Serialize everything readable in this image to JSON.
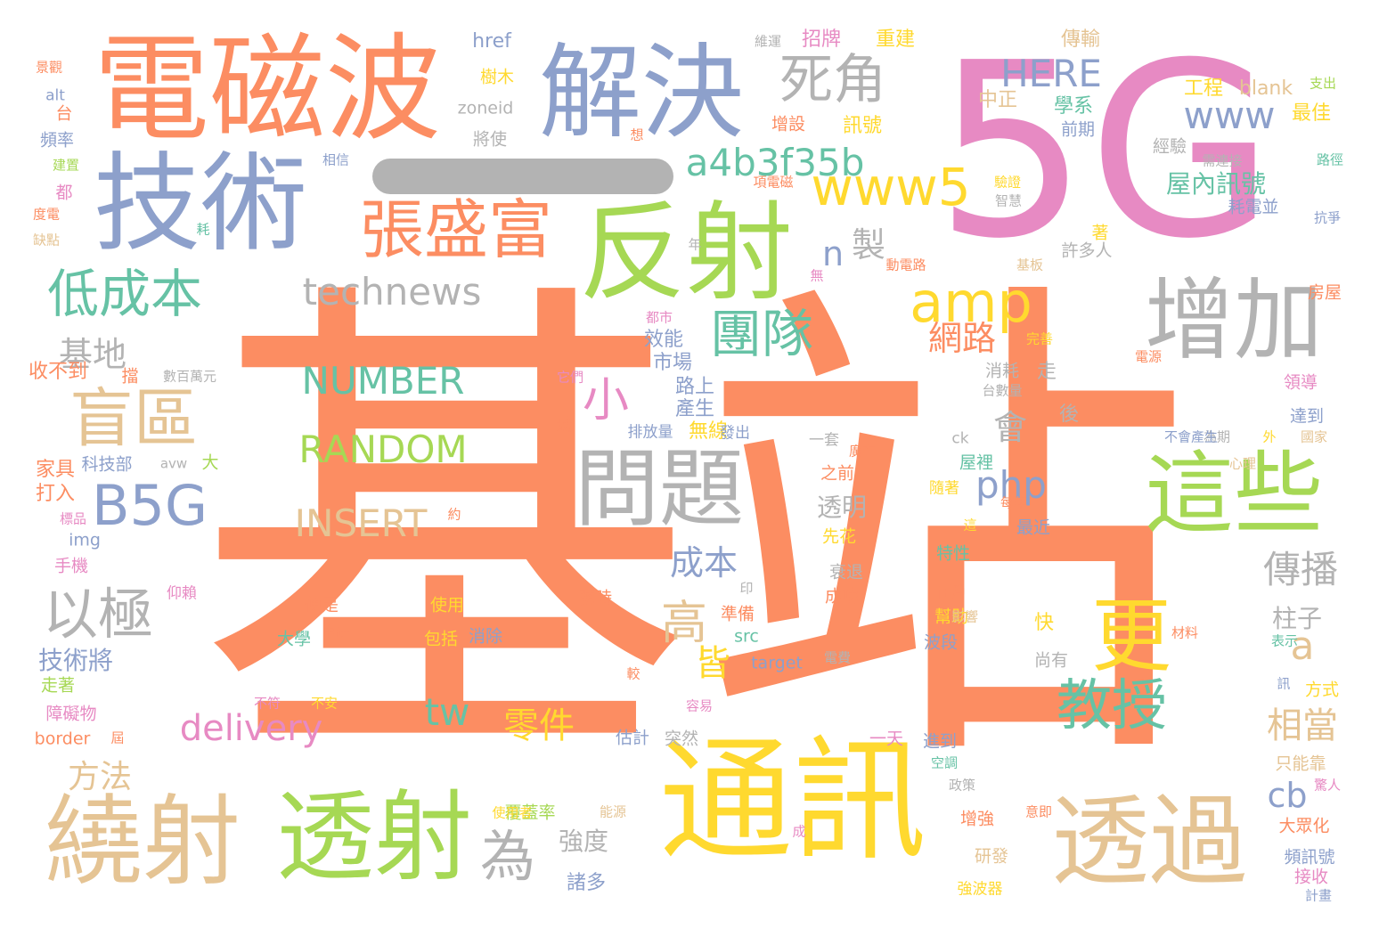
{
  "colors": {
    "orange": "#fc8d62",
    "blue": "#8da0cb",
    "pink": "#e78ac3",
    "green": "#a6d854",
    "yellow": "#ffd92f",
    "tan": "#e5c494",
    "gray": "#b3b3b3",
    "teal": "#66c2a5"
  },
  "words": [
    {
      "text": "基站",
      "color": "orange"
    },
    {
      "text": "5G",
      "color": "pink"
    },
    {
      "text": "通訊",
      "color": "yellow"
    },
    {
      "text": "電磁波",
      "color": "orange"
    },
    {
      "text": "解決",
      "color": "blue"
    },
    {
      "text": "技術",
      "color": "blue"
    },
    {
      "text": "反射",
      "color": "green"
    },
    {
      "text": "一",
      "color": "gray"
    },
    {
      "text": "透過",
      "color": "tan"
    },
    {
      "text": "繞射",
      "color": "tan"
    },
    {
      "text": "透射",
      "color": "green"
    },
    {
      "text": "增加",
      "color": "gray"
    },
    {
      "text": "這些",
      "color": "green"
    },
    {
      "text": "問題",
      "color": "gray"
    },
    {
      "text": "張盛富",
      "color": "orange"
    },
    {
      "text": "死角",
      "color": "gray"
    },
    {
      "text": "盲區",
      "color": "tan"
    },
    {
      "text": "低成本",
      "color": "teal"
    },
    {
      "text": "更",
      "color": "yellow"
    },
    {
      "text": "教授",
      "color": "teal"
    },
    {
      "text": "團隊",
      "color": "teal"
    },
    {
      "text": "amp",
      "color": "yellow"
    },
    {
      "text": "www5",
      "color": "yellow"
    },
    {
      "text": "以極",
      "color": "gray"
    },
    {
      "text": "B5G",
      "color": "blue"
    },
    {
      "text": "a4b3f35b",
      "color": "teal"
    },
    {
      "text": "technews",
      "color": "gray"
    },
    {
      "text": "HERE",
      "color": "blue"
    },
    {
      "text": "NUMBER",
      "color": "teal"
    },
    {
      "text": "RANDOM",
      "color": "green"
    },
    {
      "text": "INSERT",
      "color": "tan"
    },
    {
      "text": "為",
      "color": "gray"
    },
    {
      "text": "高",
      "color": "tan"
    },
    {
      "text": "www",
      "color": "blue"
    },
    {
      "text": "傳播",
      "color": "gray"
    },
    {
      "text": "相當",
      "color": "tan"
    },
    {
      "text": "小",
      "color": "pink"
    },
    {
      "text": "網路",
      "color": "orange"
    },
    {
      "text": "php",
      "color": "blue"
    },
    {
      "text": "會",
      "color": "gray"
    },
    {
      "text": "成本",
      "color": "blue"
    },
    {
      "text": "零件",
      "color": "yellow"
    },
    {
      "text": "delivery",
      "color": "pink"
    },
    {
      "text": "基地",
      "color": "gray"
    },
    {
      "text": "方法",
      "color": "tan"
    },
    {
      "text": "tw",
      "color": "teal"
    },
    {
      "text": "皆",
      "color": "yellow"
    },
    {
      "text": "a",
      "color": "tan"
    },
    {
      "text": "cb",
      "color": "blue"
    },
    {
      "text": "n",
      "color": "blue"
    },
    {
      "text": "製",
      "color": "gray"
    },
    {
      "text": "技術將",
      "color": "blue"
    },
    {
      "text": "屋內訊號",
      "color": "teal"
    },
    {
      "text": "柱子",
      "color": "gray"
    },
    {
      "text": "透明",
      "color": "gray"
    },
    {
      "text": "強度",
      "color": "gray"
    },
    {
      "text": "諸多",
      "color": "blue"
    },
    {
      "text": "href",
      "color": "blue"
    },
    {
      "text": "樹木",
      "color": "yellow"
    },
    {
      "text": "zoneid",
      "color": "gray"
    },
    {
      "text": "將使",
      "color": "gray"
    },
    {
      "text": "招牌",
      "color": "pink"
    },
    {
      "text": "重建",
      "color": "yellow"
    },
    {
      "text": "傳輸",
      "color": "tan"
    },
    {
      "text": "中正",
      "color": "tan"
    },
    {
      "text": "學系",
      "color": "teal"
    },
    {
      "text": "工程",
      "color": "yellow"
    },
    {
      "text": "blank",
      "color": "tan"
    },
    {
      "text": "最佳",
      "color": "yellow"
    },
    {
      "text": "前期",
      "color": "blue"
    },
    {
      "text": "增設",
      "color": "orange"
    },
    {
      "text": "訊號",
      "color": "yellow"
    },
    {
      "text": "經驗",
      "color": "gray"
    },
    {
      "text": "耗電並",
      "color": "blue"
    },
    {
      "text": "路上",
      "color": "blue"
    },
    {
      "text": "產生",
      "color": "blue"
    },
    {
      "text": "無線",
      "color": "yellow"
    },
    {
      "text": "市場",
      "color": "blue"
    },
    {
      "text": "效能",
      "color": "blue"
    },
    {
      "text": "走",
      "color": "gray"
    },
    {
      "text": "後",
      "color": "gray"
    },
    {
      "text": "許多人",
      "color": "gray"
    },
    {
      "text": "消耗",
      "color": "gray"
    },
    {
      "text": "收不到",
      "color": "orange"
    },
    {
      "text": "家具",
      "color": "orange"
    },
    {
      "text": "打入",
      "color": "orange"
    },
    {
      "text": "img",
      "color": "blue"
    },
    {
      "text": "手機",
      "color": "pink"
    },
    {
      "text": "障礙物",
      "color": "pink"
    },
    {
      "text": "走著",
      "color": "green"
    },
    {
      "text": "border",
      "color": "orange"
    },
    {
      "text": "使用",
      "color": "yellow"
    },
    {
      "text": "便是",
      "color": "orange"
    },
    {
      "text": "大學",
      "color": "teal"
    },
    {
      "text": "消除",
      "color": "blue"
    },
    {
      "text": "包括",
      "color": "yellow"
    },
    {
      "text": "src",
      "color": "teal"
    },
    {
      "text": "target",
      "color": "blue"
    },
    {
      "text": "準備",
      "color": "orange"
    },
    {
      "text": "成功",
      "color": "orange"
    },
    {
      "text": "號時",
      "color": "orange"
    },
    {
      "text": "衰退",
      "color": "gray"
    },
    {
      "text": "特性",
      "color": "teal"
    },
    {
      "text": "幫助",
      "color": "yellow"
    },
    {
      "text": "波段",
      "color": "blue"
    },
    {
      "text": "尚有",
      "color": "gray"
    },
    {
      "text": "快",
      "color": "yellow"
    },
    {
      "text": "隨著",
      "color": "yellow"
    },
    {
      "text": "屋裡",
      "color": "teal"
    },
    {
      "text": "最近",
      "color": "blue"
    },
    {
      "text": "每年",
      "color": "orange"
    },
    {
      "text": "心理",
      "color": "tan"
    },
    {
      "text": "為期",
      "color": "gray"
    },
    {
      "text": "達到",
      "color": "blue"
    },
    {
      "text": "領導",
      "color": "pink"
    },
    {
      "text": "房屋",
      "color": "orange"
    },
    {
      "text": "方式",
      "color": "yellow"
    },
    {
      "text": "只能靠",
      "color": "tan"
    },
    {
      "text": "大眾化",
      "color": "orange"
    },
    {
      "text": "接收",
      "color": "pink"
    },
    {
      "text": "頻訊號",
      "color": "blue"
    },
    {
      "text": "計畫",
      "color": "blue"
    },
    {
      "text": "增強",
      "color": "orange"
    },
    {
      "text": "研發",
      "color": "tan"
    },
    {
      "text": "強波器",
      "color": "yellow"
    },
    {
      "text": "覆蓋率",
      "color": "green"
    },
    {
      "text": "進到",
      "color": "blue"
    },
    {
      "text": "一天",
      "color": "pink"
    },
    {
      "text": "估計",
      "color": "blue"
    },
    {
      "text": "突然",
      "color": "gray"
    },
    {
      "text": "空調",
      "color": "teal"
    },
    {
      "text": "一套",
      "color": "gray"
    },
    {
      "text": "之前",
      "color": "orange"
    },
    {
      "text": "排放量",
      "color": "blue"
    },
    {
      "text": "發出",
      "color": "blue"
    },
    {
      "text": "遮",
      "color": "orange"
    },
    {
      "text": "大",
      "color": "green"
    },
    {
      "text": "avw",
      "color": "gray"
    },
    {
      "text": "科技部",
      "color": "blue"
    },
    {
      "text": "頻率",
      "color": "blue"
    },
    {
      "text": "台",
      "color": "orange"
    },
    {
      "text": "alt",
      "color": "blue"
    },
    {
      "text": "景觀",
      "color": "orange"
    },
    {
      "text": "都",
      "color": "pink"
    },
    {
      "text": "缺點",
      "color": "tan"
    },
    {
      "text": "度電",
      "color": "orange"
    },
    {
      "text": "建置",
      "color": "green"
    },
    {
      "text": "抗爭",
      "color": "blue"
    },
    {
      "text": "路徑",
      "color": "teal"
    },
    {
      "text": "支出",
      "color": "green"
    },
    {
      "text": "先花",
      "color": "yellow"
    },
    {
      "text": "住戶",
      "color": "orange"
    },
    {
      "text": "影響",
      "color": "tan"
    },
    {
      "text": "印",
      "color": "gray"
    },
    {
      "text": "材料",
      "color": "orange"
    },
    {
      "text": "表示",
      "color": "teal"
    },
    {
      "text": "仰賴",
      "color": "pink"
    },
    {
      "text": "中研",
      "color": "orange"
    },
    {
      "text": "ck",
      "color": "gray"
    },
    {
      "text": "廣布",
      "color": "orange"
    },
    {
      "text": "不會產生",
      "color": "blue"
    },
    {
      "text": "外",
      "color": "yellow"
    },
    {
      "text": "國家",
      "color": "tan"
    },
    {
      "text": "電源",
      "color": "orange"
    },
    {
      "text": "數百萬元",
      "color": "gray"
    },
    {
      "text": "它們",
      "color": "pink"
    },
    {
      "text": "擋",
      "color": "orange"
    },
    {
      "text": "標品",
      "color": "pink"
    },
    {
      "text": "約",
      "color": "orange"
    },
    {
      "text": "不符",
      "color": "pink"
    },
    {
      "text": "不安",
      "color": "yellow"
    },
    {
      "text": "容易",
      "color": "pink"
    },
    {
      "text": "政策",
      "color": "gray"
    },
    {
      "text": "意即",
      "color": "orange"
    },
    {
      "text": "使用者",
      "color": "yellow"
    },
    {
      "text": "能源",
      "color": "tan"
    },
    {
      "text": "成",
      "color": "pink"
    },
    {
      "text": "驚人",
      "color": "pink"
    },
    {
      "text": "想",
      "color": "orange"
    },
    {
      "text": "耗",
      "color": "teal"
    },
    {
      "text": "年",
      "color": "gray"
    },
    {
      "text": "需連接",
      "color": "gray"
    },
    {
      "text": "相信",
      "color": "blue"
    },
    {
      "text": "項電磁",
      "color": "orange"
    },
    {
      "text": "驗證",
      "color": "yellow"
    },
    {
      "text": "智慧",
      "color": "gray"
    },
    {
      "text": "動電路",
      "color": "orange"
    },
    {
      "text": "基板",
      "color": "tan"
    },
    {
      "text": "無",
      "color": "pink"
    },
    {
      "text": "都市",
      "color": "pink"
    },
    {
      "text": "完善",
      "color": "yellow"
    },
    {
      "text": "台數量",
      "color": "gray"
    },
    {
      "text": "時",
      "color": "orange"
    },
    {
      "text": "訊",
      "color": "blue"
    },
    {
      "text": "電費",
      "color": "gray"
    },
    {
      "text": "較",
      "color": "orange"
    },
    {
      "text": "這",
      "color": "yellow"
    },
    {
      "text": "維運",
      "color": "gray"
    },
    {
      "text": "著",
      "color": "yellow"
    },
    {
      "text": "屆",
      "color": "orange"
    }
  ]
}
